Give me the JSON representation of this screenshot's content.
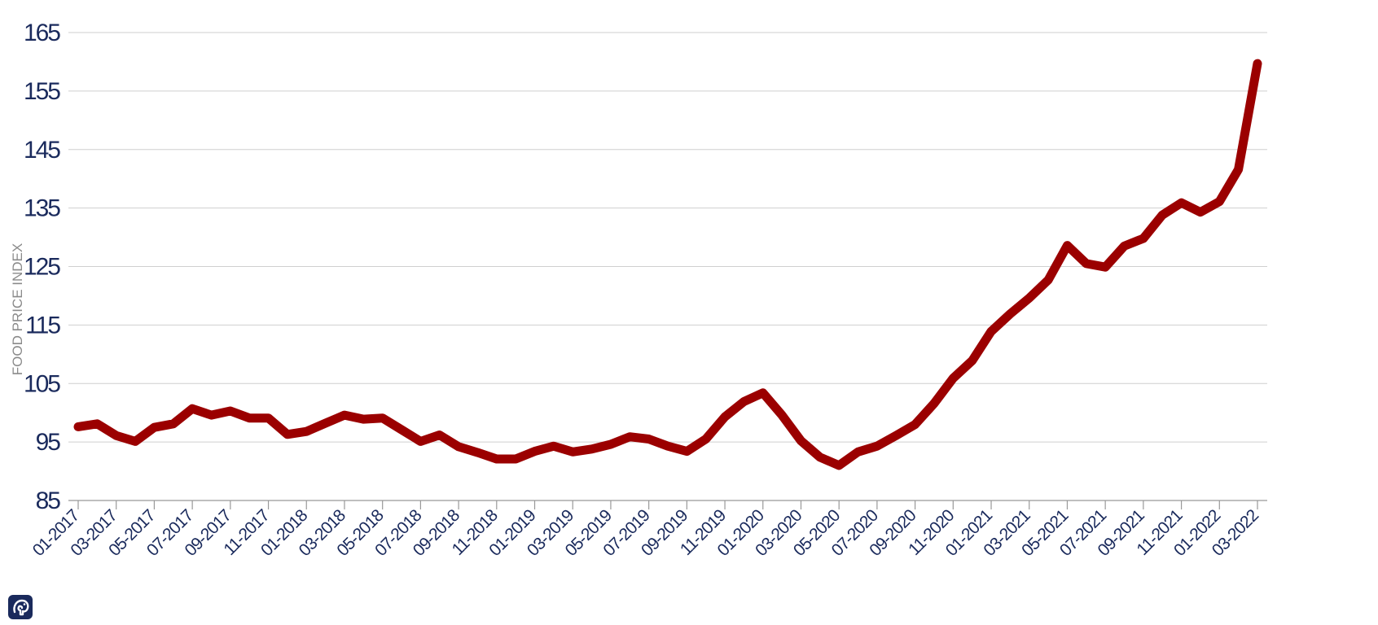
{
  "chart_data": {
    "type": "line",
    "title": "",
    "xlabel": "",
    "ylabel": "FOOD PRICE INDEX",
    "ylim": [
      85,
      165
    ],
    "yticks": [
      85,
      95,
      105,
      115,
      125,
      135,
      145,
      155,
      165
    ],
    "grid": "horizontal",
    "x": [
      "01-2017",
      "02-2017",
      "03-2017",
      "04-2017",
      "05-2017",
      "06-2017",
      "07-2017",
      "08-2017",
      "09-2017",
      "10-2017",
      "11-2017",
      "12-2017",
      "01-2018",
      "02-2018",
      "03-2018",
      "04-2018",
      "05-2018",
      "06-2018",
      "07-2018",
      "08-2018",
      "09-2018",
      "10-2018",
      "11-2018",
      "12-2018",
      "01-2019",
      "02-2019",
      "03-2019",
      "04-2019",
      "05-2019",
      "06-2019",
      "07-2019",
      "08-2019",
      "09-2019",
      "10-2019",
      "11-2019",
      "12-2019",
      "01-2020",
      "02-2020",
      "03-2020",
      "04-2020",
      "05-2020",
      "06-2020",
      "07-2020",
      "08-2020",
      "09-2020",
      "10-2020",
      "11-2020",
      "12-2020",
      "01-2021",
      "02-2021",
      "03-2021",
      "04-2021",
      "05-2021",
      "06-2021",
      "07-2021",
      "08-2021",
      "09-2021",
      "10-2021",
      "11-2021",
      "12-2021",
      "01-2022",
      "02-2022",
      "03-2022"
    ],
    "xtick_labels": [
      "01-2017",
      "03-2017",
      "05-2017",
      "07-2017",
      "09-2017",
      "11-2017",
      "01-2018",
      "03-2018",
      "05-2018",
      "07-2018",
      "09-2018",
      "11-2018",
      "01-2019",
      "03-2019",
      "05-2019",
      "07-2019",
      "09-2019",
      "11-2019",
      "01-2020",
      "03-2020",
      "05-2020",
      "07-2020",
      "09-2020",
      "11-2020",
      "01-2021",
      "03-2021",
      "05-2021",
      "07-2021",
      "09-2021",
      "11-2021",
      "01-2022",
      "03-2022"
    ],
    "series": [
      {
        "color": "#9b0000",
        "values": [
          97.6,
          98.1,
          96.1,
          95.1,
          97.5,
          98.1,
          100.7,
          99.6,
          100.3,
          99.1,
          99.1,
          96.3,
          96.8,
          98.2,
          99.6,
          98.9,
          99.1,
          97.1,
          95.1,
          96.2,
          94.2,
          93.2,
          92.1,
          92.1,
          93.4,
          94.3,
          93.3,
          93.8,
          94.6,
          95.9,
          95.5,
          94.3,
          93.4,
          95.5,
          99.3,
          101.9,
          103.4,
          99.6,
          95.2,
          92.4,
          91.0,
          93.3,
          94.3,
          96.1,
          98.0,
          101.6,
          105.9,
          108.9,
          113.9,
          116.9,
          119.6,
          122.7,
          128.6,
          125.5,
          124.9,
          128.5,
          129.8,
          133.8,
          135.9,
          134.3,
          136.1,
          141.6,
          159.7
        ]
      }
    ]
  },
  "colors": {
    "line": "#9b0000",
    "tick_text": "#1a2a5c",
    "grid": "#cfcfcf",
    "ylabel_text": "#8a8a8a",
    "logo_bg": "#1a2a5c"
  },
  "logo": {
    "icon": "elephant-logo-icon"
  }
}
